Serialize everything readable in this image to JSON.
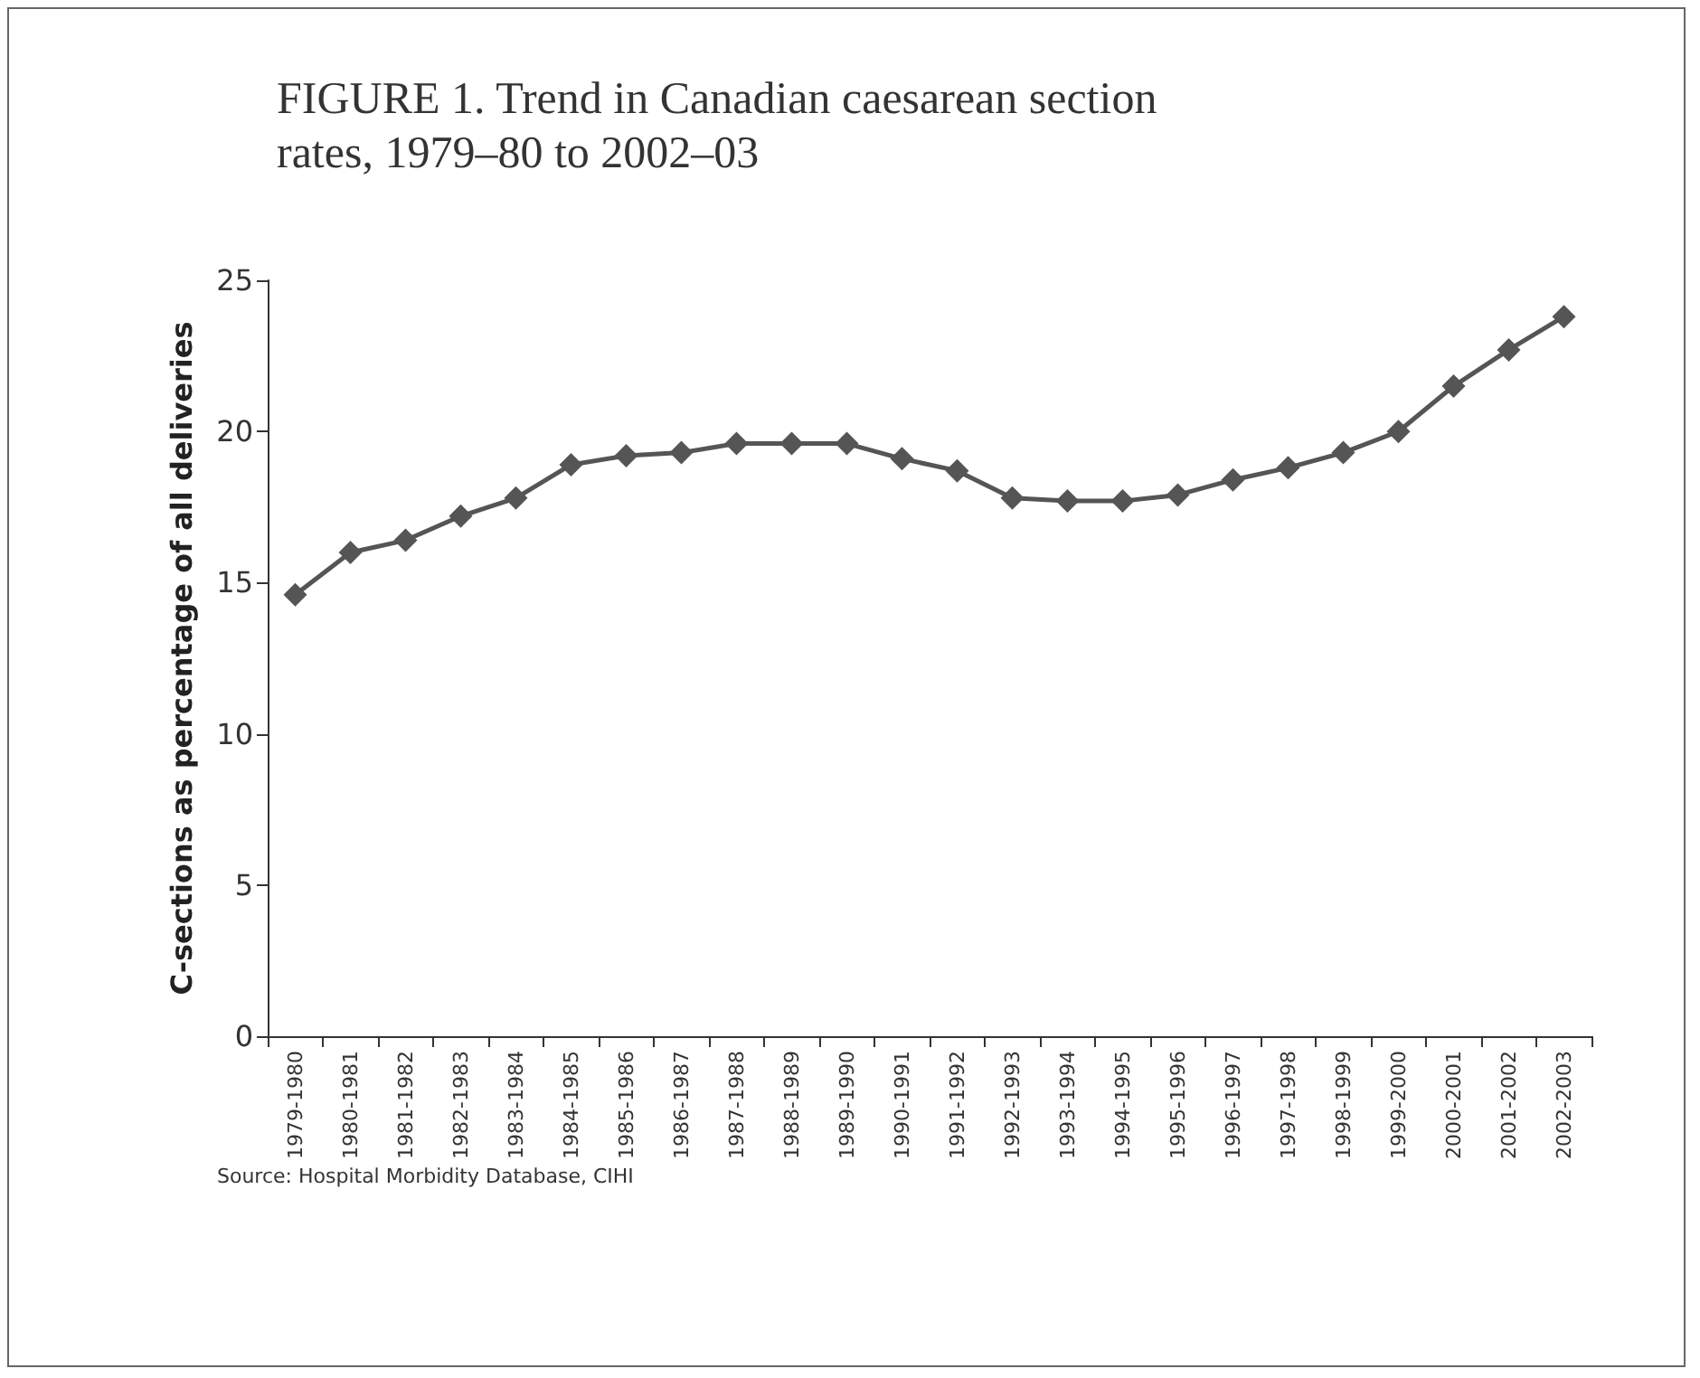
{
  "chart_data": {
    "type": "line",
    "title": "FIGURE 1. Trend in Canadian caesarean section rates, 1979–80 to 2002–03",
    "ylabel": "C-sections as percentage of all deliveries",
    "categories": [
      "1979-1980",
      "1980-1981",
      "1981-1982",
      "1982-1983",
      "1983-1984",
      "1984-1985",
      "1985-1986",
      "1986-1987",
      "1987-1988",
      "1988-1989",
      "1989-1990",
      "1990-1991",
      "1991-1992",
      "1992-1993",
      "1993-1994",
      "1994-1995",
      "1995-1996",
      "1996-1997",
      "1997-1998",
      "1998-1999",
      "1999-2000",
      "2000-2001",
      "2001-2002",
      "2002-2003"
    ],
    "series": [
      {
        "color": "#555555",
        "values": [
          14.6,
          16.0,
          16.4,
          17.2,
          17.8,
          18.9,
          19.2,
          19.3,
          19.6,
          19.6,
          19.6,
          19.1,
          18.7,
          17.8,
          17.7,
          17.7,
          17.9,
          18.4,
          18.8,
          19.3,
          20.0,
          21.5,
          22.7,
          23.8
        ]
      }
    ],
    "ylim": [
      0,
      25
    ],
    "yticks": [
      0,
      5,
      10,
      15,
      20,
      25
    ],
    "grid": false,
    "marker": "diamond",
    "line_style": "solid",
    "annotations": [
      "Source: Hospital Morbidity Database, CIHI"
    ]
  }
}
